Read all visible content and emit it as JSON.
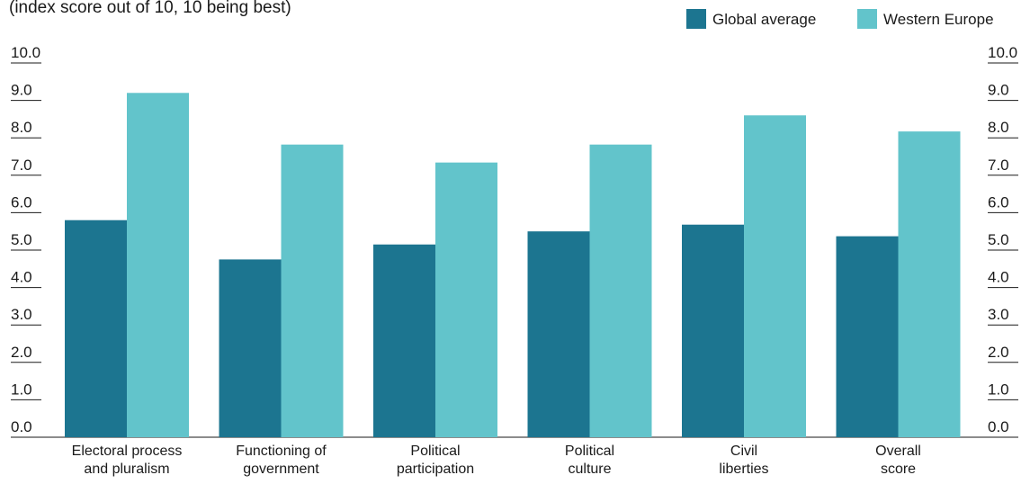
{
  "chart_data": {
    "type": "bar",
    "subtitle": "(index score out of 10, 10 being best)",
    "categories": [
      [
        "Electoral process",
        "and pluralism"
      ],
      [
        "Functioning of",
        "government"
      ],
      [
        "Political",
        "participation"
      ],
      [
        "Political",
        "culture"
      ],
      [
        "Civil",
        "liberties"
      ],
      [
        "Overall",
        "score"
      ]
    ],
    "series": [
      {
        "name": "Global average",
        "color": "#1c7590",
        "values": [
          5.8,
          4.75,
          5.15,
          5.5,
          5.68,
          5.37
        ]
      },
      {
        "name": "Western Europe",
        "color": "#62c4cb",
        "values": [
          9.2,
          7.82,
          7.34,
          7.82,
          8.6,
          8.17
        ]
      }
    ],
    "yticks": [
      "0.0",
      "1.0",
      "2.0",
      "3.0",
      "4.0",
      "5.0",
      "6.0",
      "7.0",
      "8.0",
      "9.0",
      "10.0"
    ],
    "ylim": [
      0,
      10
    ],
    "legend": "top-right",
    "grid": false
  }
}
